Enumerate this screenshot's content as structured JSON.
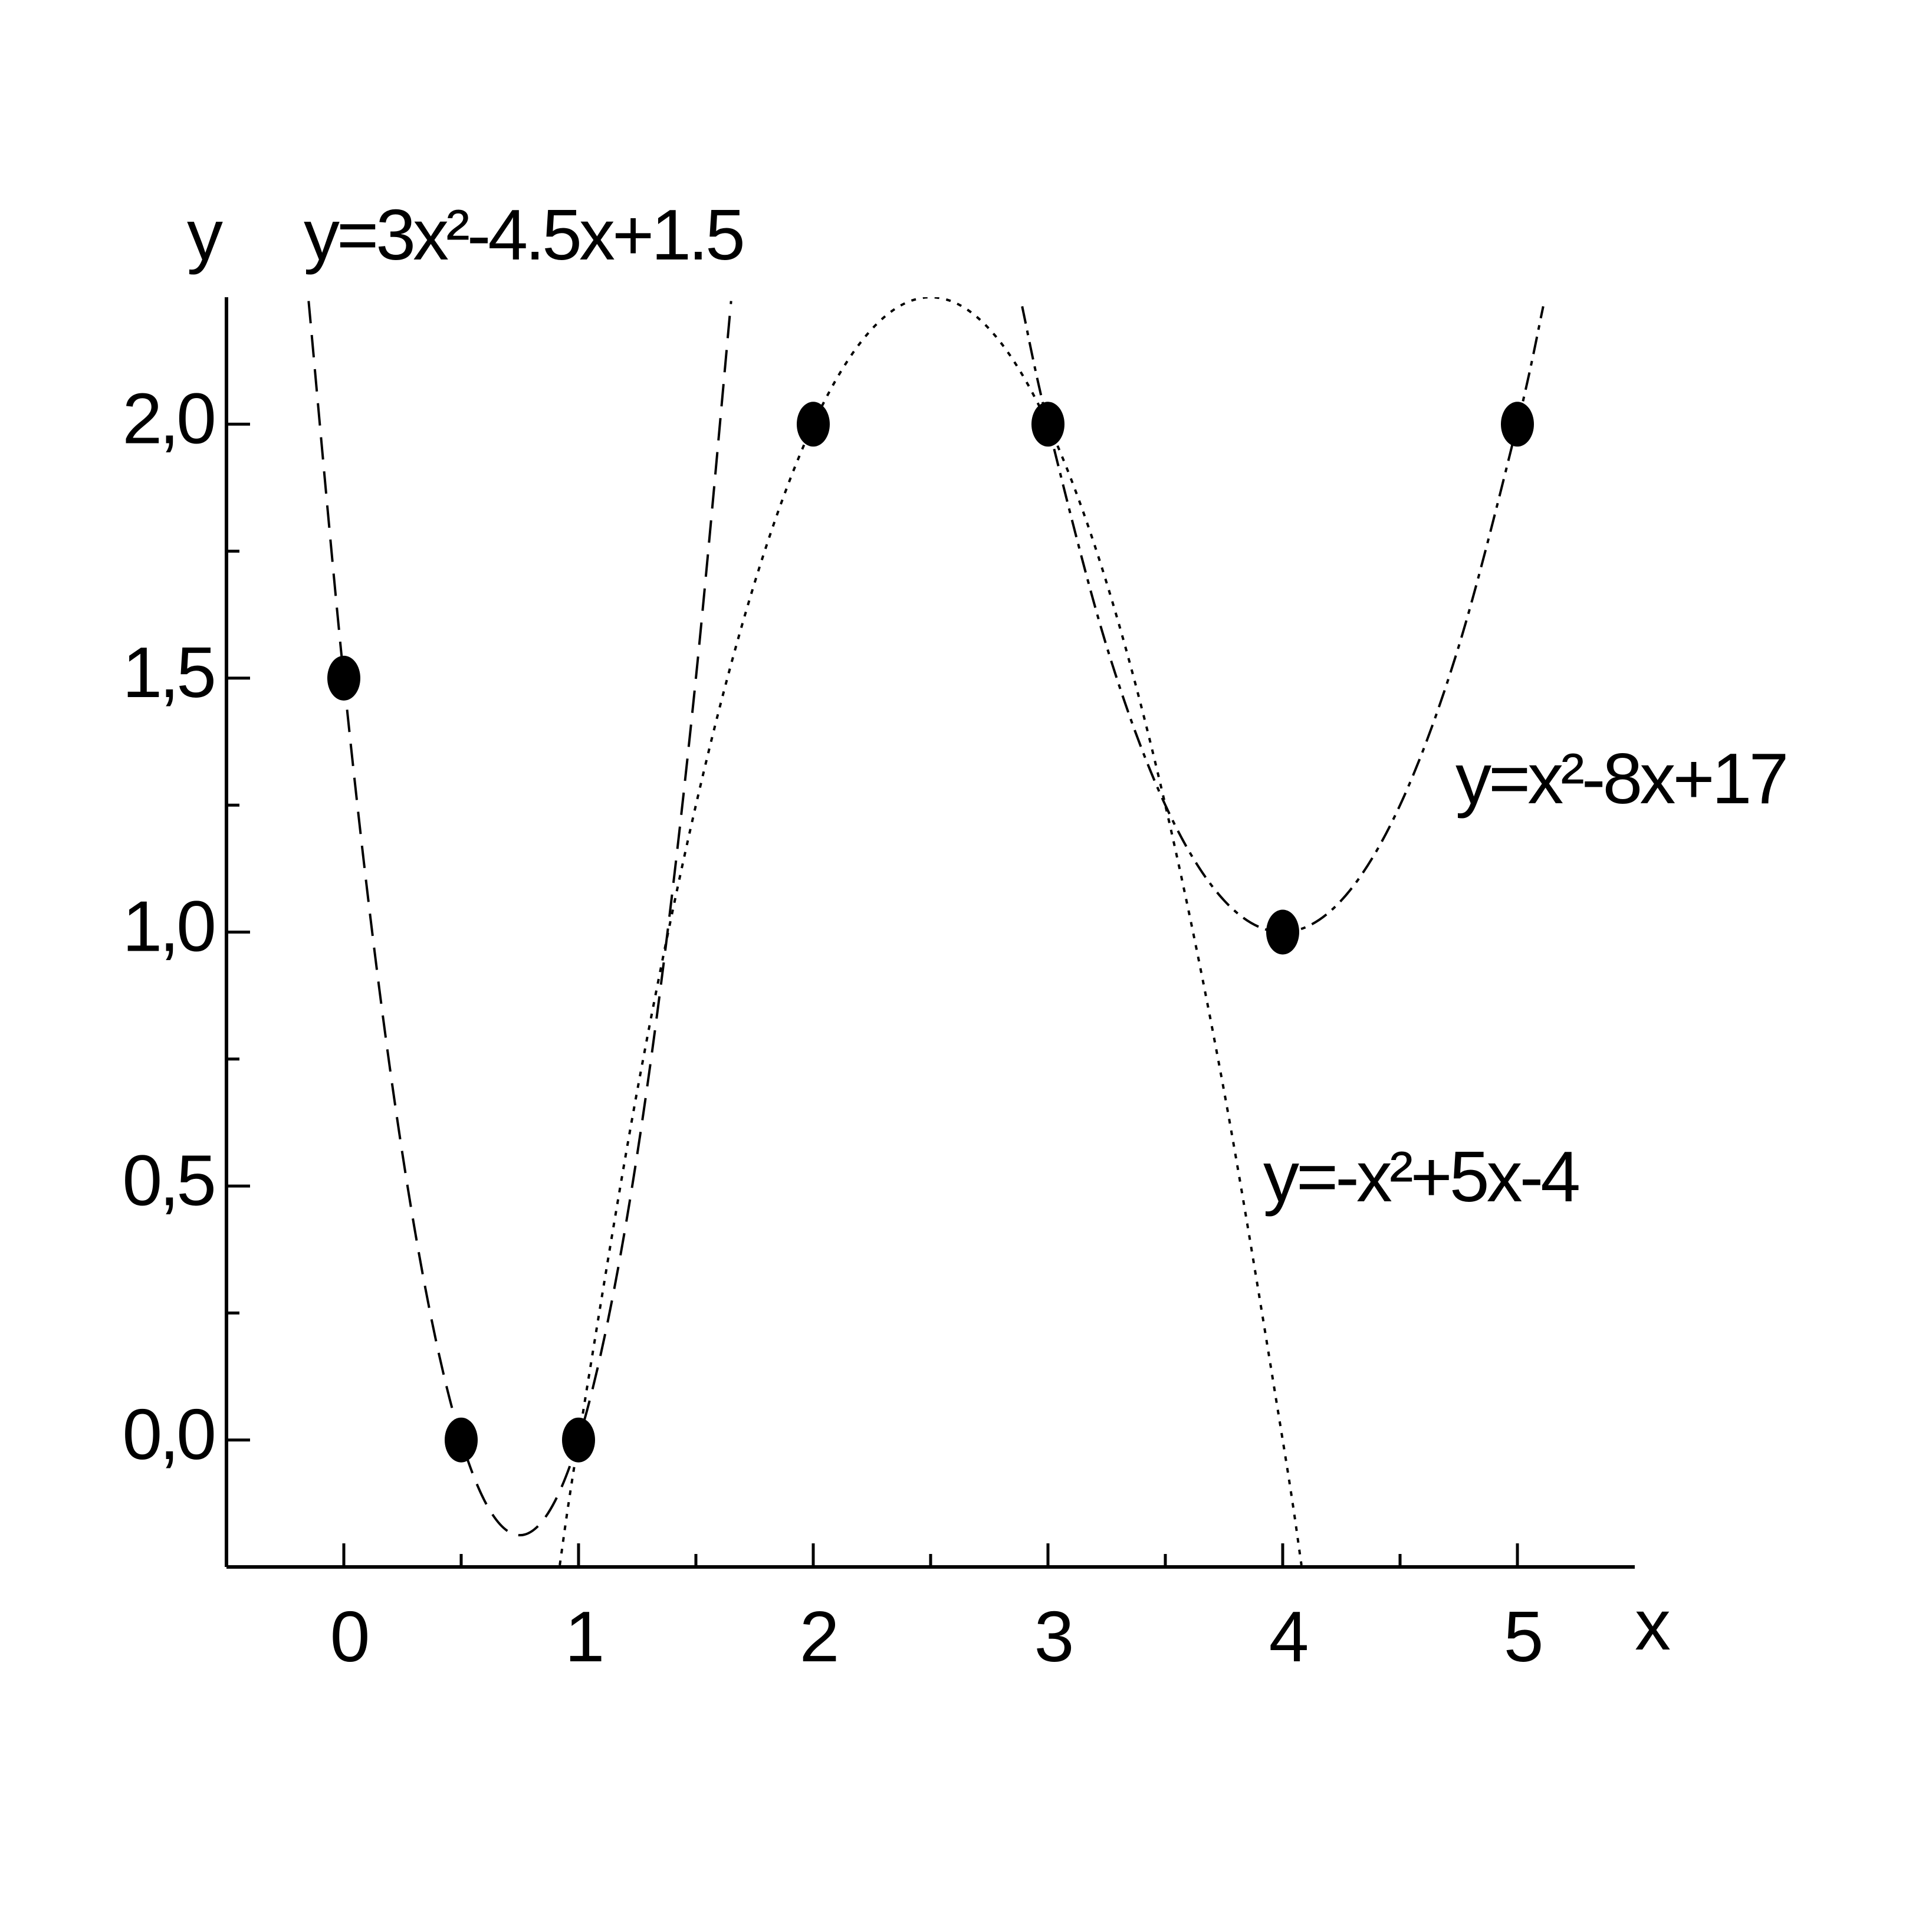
{
  "chart_data": {
    "type": "scatter",
    "xlabel": "x",
    "ylabel": "y",
    "xlim": [
      -0.5,
      5.5
    ],
    "ylim": [
      -0.25,
      2.25
    ],
    "xticks": [
      0,
      1,
      2,
      3,
      4,
      5
    ],
    "xminorticks": [
      0.5,
      1.5,
      2.5,
      3.5,
      4.5
    ],
    "yticks": [
      {
        "value": 0,
        "label": "0,0"
      },
      {
        "value": 0.5,
        "label": "0,5"
      },
      {
        "value": 1,
        "label": "1,0"
      },
      {
        "value": 1.5,
        "label": "1,5"
      },
      {
        "value": 2,
        "label": "2,0"
      }
    ],
    "yminorticks": [
      0.25,
      0.75,
      1.25,
      1.75
    ],
    "annotations": [
      "y=3x²-4.5x+1.5",
      "y=x²-8x+17",
      "y=-x²+5x-4"
    ],
    "series": [
      {
        "type": "scatter",
        "color": "#000000",
        "x": [
          0,
          0.5,
          1,
          2,
          3,
          4,
          5
        ],
        "values": [
          1.5,
          0,
          0,
          2,
          2,
          1,
          2
        ]
      },
      {
        "type": "line",
        "style": "dashed",
        "color": "#000000",
        "x": [
          -0.15,
          0,
          0.15,
          0.3,
          0.45,
          0.6,
          0.75,
          0.9,
          1.05,
          1.2,
          1.35,
          1.5,
          1.65
        ],
        "values": [
          2.2425,
          1.5,
          0.8925,
          0.42,
          0.0825,
          -0.12,
          -0.1875,
          -0.12,
          0.0825,
          0.42,
          0.8925,
          1.5,
          2.2425
        ]
      },
      {
        "type": "line",
        "style": "dashdot",
        "color": "#000000",
        "x": [
          2.89,
          3,
          3.25,
          3.5,
          3.75,
          4,
          4.25,
          4.5,
          4.75,
          5,
          5.11
        ],
        "values": [
          2.2321,
          2,
          1.5625,
          1.25,
          1.0625,
          1,
          1.0625,
          1.25,
          1.5625,
          2,
          2.2321
        ]
      },
      {
        "type": "line",
        "style": "dotted",
        "color": "#000000",
        "x": [
          0.92,
          1,
          1.25,
          1.5,
          1.75,
          2,
          2.25,
          2.5,
          2.75,
          3,
          3.25,
          3.5,
          3.75,
          4,
          4.08
        ],
        "values": [
          -0.2464,
          0,
          0.6875,
          1.25,
          1.6875,
          2,
          2.1875,
          2.25,
          2.1875,
          2,
          1.6875,
          1.25,
          0.6875,
          0,
          -0.2464
        ]
      }
    ]
  }
}
